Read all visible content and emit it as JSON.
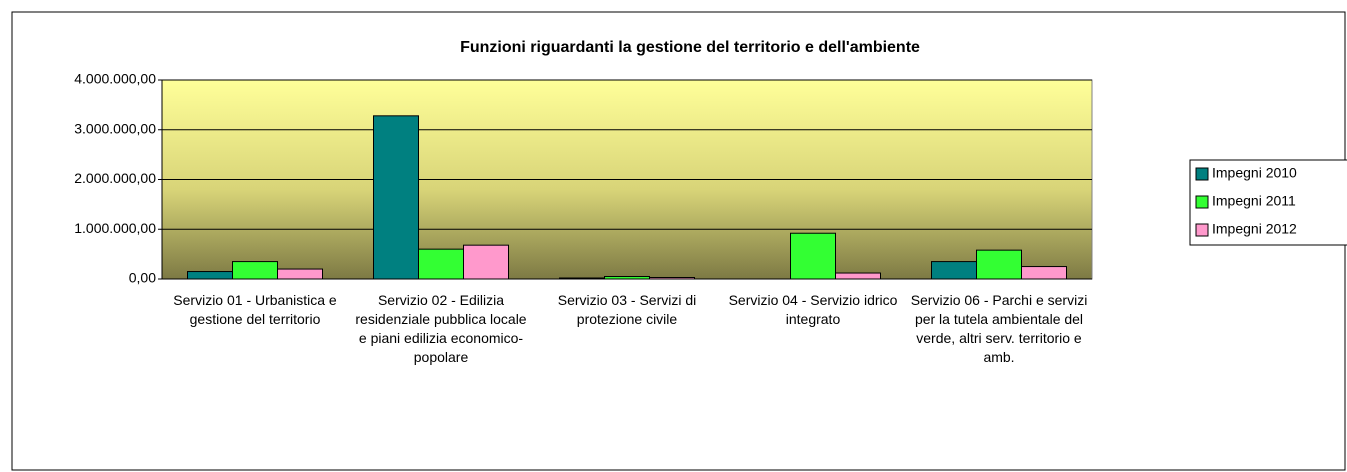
{
  "chart_data": {
    "type": "bar",
    "title": "Funzioni riguardanti la gestione del territorio e dell'ambiente",
    "categories": [
      "Servizio 01 - Urbanistica e gestione del territorio",
      "Servizio 02 - Edilizia residenziale pubblica locale e piani edilizia economico-popolare",
      "Servizio 03 - Servizi di protezione civile",
      "Servizio 04 - Servizio idrico integrato",
      "Servizio 06 - Parchi e servizi per la tutela ambientale del verde, altri serv. territorio e amb."
    ],
    "series": [
      {
        "name": "Impegni 2010",
        "color": "#008080",
        "values": [
          150000,
          3280000,
          20000,
          0,
          350000
        ]
      },
      {
        "name": "Impegni 2011",
        "color": "#33ff33",
        "values": [
          350000,
          600000,
          50000,
          920000,
          580000
        ]
      },
      {
        "name": "Impegni 2012",
        "color": "#ff99cc",
        "values": [
          200000,
          680000,
          30000,
          120000,
          250000
        ]
      }
    ],
    "ylim": [
      0,
      4000000
    ],
    "yticks": [
      {
        "value": 0,
        "label": "0,00"
      },
      {
        "value": 1000000,
        "label": "1.000.000,00"
      },
      {
        "value": 2000000,
        "label": "2.000.000,00"
      },
      {
        "value": 3000000,
        "label": "3.000.000,00"
      },
      {
        "value": 4000000,
        "label": "4.000.000,00"
      }
    ],
    "grid": true
  }
}
